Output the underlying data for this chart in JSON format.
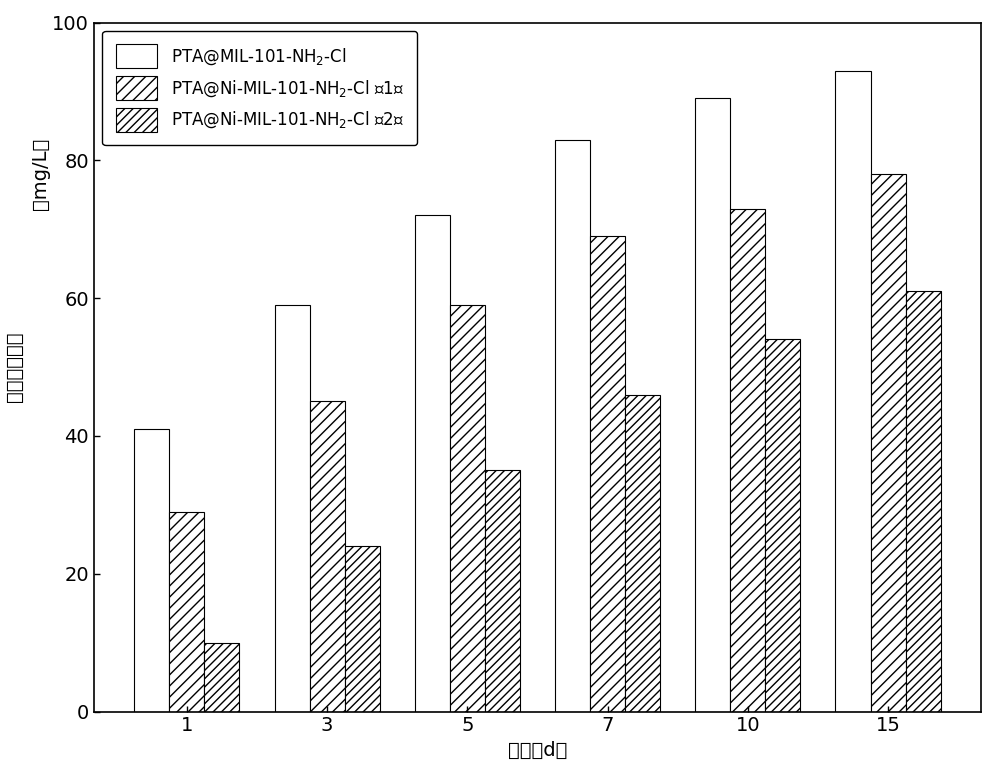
{
  "categories": [
    1,
    3,
    5,
    7,
    10,
    15
  ],
  "series": [
    {
      "label_en": "PTA@MIL-101-NH$_2$-Cl",
      "values": [
        41,
        59,
        72,
        83,
        89,
        93
      ],
      "facecolor": "white",
      "hatch": "",
      "edgecolor": "black"
    },
    {
      "label_en": "PTA@Ni-MIL-101-NH$_2$-Cl （1）",
      "values": [
        29,
        45,
        59,
        69,
        73,
        78
      ],
      "facecolor": "white",
      "hatch": "///",
      "edgecolor": "black"
    },
    {
      "label_en": "PTA@Ni-MIL-101-NH$_2$-Cl （2）",
      "values": [
        10,
        24,
        35,
        46,
        54,
        61
      ],
      "facecolor": "white",
      "hatch": "////",
      "edgecolor": "black"
    }
  ],
  "xlabel_cn": "时间（d）",
  "ylabel_cn": "钓离子溢出量",
  "ylabel_unit": "（mg/L）",
  "ylim": [
    0,
    100
  ],
  "yticks": [
    0,
    20,
    40,
    60,
    80,
    100
  ],
  "bar_width": 0.25,
  "figsize": [
    9.96,
    7.75
  ],
  "dpi": 100,
  "legend_loc": "upper left",
  "background_color": "white"
}
